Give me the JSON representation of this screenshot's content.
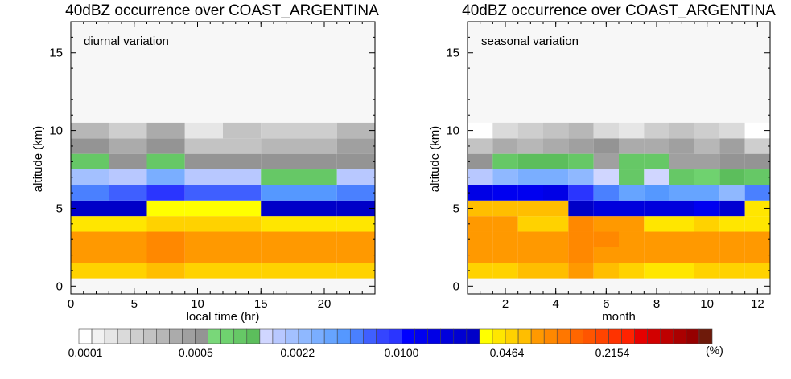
{
  "chart_data": [
    {
      "type": "heatmap",
      "title": "40dBZ occurrence over COAST_ARGENTINA",
      "annotation": "diurnal variation",
      "xlabel": "local time (hr)",
      "ylabel": "altitude (km)",
      "xlim": [
        0,
        24
      ],
      "ylim": [
        -0.5,
        17
      ],
      "xticks": [
        "0",
        "5",
        "10",
        "15",
        "20"
      ],
      "xtick_values": [
        0,
        5,
        10,
        15,
        20
      ],
      "yticks": [
        "0",
        "5",
        "10",
        "15"
      ],
      "ytick_values": [
        0,
        5,
        10,
        15
      ],
      "x_bin_edges": [
        0,
        3,
        6,
        9,
        12,
        15,
        18,
        21,
        24
      ],
      "y_bin_edges": [
        0.5,
        1.5,
        2.5,
        3.5,
        4.5,
        5.5,
        6.5,
        7.5,
        8.5,
        9.5,
        10.5
      ],
      "color_index_rows_bottom_to_top": [
        [
          33,
          33,
          34,
          33,
          33,
          33,
          33,
          33
        ],
        [
          35,
          35,
          36,
          35,
          35,
          35,
          35,
          35
        ],
        [
          35,
          35,
          36,
          35,
          35,
          35,
          35,
          35
        ],
        [
          32,
          32,
          33,
          33,
          33,
          32,
          32,
          32
        ],
        [
          30,
          30,
          31,
          31,
          31,
          30,
          30,
          30
        ],
        [
          21,
          22,
          24,
          22,
          22,
          20,
          20,
          21
        ],
        [
          16,
          15,
          18,
          15,
          15,
          12,
          12,
          15
        ],
        [
          12,
          9,
          12,
          9,
          9,
          9,
          9,
          9
        ],
        [
          9,
          7,
          9,
          5,
          5,
          6,
          6,
          8
        ],
        [
          6,
          4,
          7,
          2,
          5,
          4,
          4,
          6
        ],
        [
          4,
          1,
          3,
          0,
          0,
          0,
          0,
          2
        ]
      ]
    },
    {
      "type": "heatmap",
      "title": "40dBZ occurrence over COAST_ARGENTINA",
      "annotation": "seasonal variation",
      "xlabel": "month",
      "ylabel": "altitude (km)",
      "xlim": [
        0.5,
        12.5
      ],
      "ylim": [
        -0.5,
        17
      ],
      "xticks": [
        "2",
        "4",
        "6",
        "8",
        "10",
        "12"
      ],
      "xtick_values": [
        2,
        4,
        6,
        8,
        10,
        12
      ],
      "yticks": [
        "0",
        "5",
        "10",
        "15"
      ],
      "ytick_values": [
        0,
        5,
        10,
        15
      ],
      "x_bin_edges": [
        0.5,
        1.5,
        2.5,
        3.5,
        4.5,
        5.5,
        6.5,
        7.5,
        8.5,
        9.5,
        10.5,
        11.5,
        12.5
      ],
      "y_bin_edges": [
        0.5,
        1.5,
        2.5,
        3.5,
        4.5,
        5.5,
        6.5,
        7.5,
        8.5,
        9.5,
        10.5
      ],
      "color_index_rows_bottom_to_top": [
        [
          33,
          33,
          34,
          34,
          35,
          34,
          33,
          32,
          32,
          33,
          33,
          33
        ],
        [
          35,
          35,
          35,
          35,
          36,
          35,
          35,
          35,
          35,
          35,
          35,
          35
        ],
        [
          35,
          35,
          35,
          35,
          36,
          36,
          35,
          35,
          35,
          35,
          35,
          35
        ],
        [
          35,
          35,
          33,
          33,
          36,
          35,
          35,
          32,
          32,
          33,
          32,
          32
        ],
        [
          34,
          34,
          34,
          34,
          30,
          28,
          28,
          28,
          28,
          26,
          29,
          32
        ],
        [
          27,
          26,
          26,
          27,
          24,
          21,
          19,
          20,
          19,
          19,
          17,
          21
        ],
        [
          15,
          17,
          18,
          18,
          17,
          14,
          12,
          14,
          12,
          11,
          13,
          12
        ],
        [
          9,
          12,
          13,
          13,
          12,
          8,
          12,
          12,
          8,
          8,
          9,
          9
        ],
        [
          5,
          7,
          6,
          7,
          8,
          9,
          7,
          7,
          8,
          6,
          8,
          4
        ],
        [
          0,
          3,
          4,
          5,
          6,
          3,
          2,
          4,
          5,
          4,
          3,
          0
        ],
        [
          0,
          0,
          0,
          1,
          2,
          0,
          0,
          0,
          1,
          1,
          2,
          0
        ]
      ]
    },
    {
      "type": "colorbar",
      "unit": "(%)",
      "tick_labels": [
        "0.0001",
        "0.0005",
        "0.0022",
        "0.0100",
        "0.0464",
        "0.2154"
      ],
      "tick_values": [
        0.0001,
        0.0005,
        0.0022,
        0.01,
        0.0464,
        0.2154
      ],
      "scale": "log",
      "colors": [
        "#ffffff",
        "#f2f2f2",
        "#e6e6e6",
        "#dadada",
        "#cecece",
        "#c3c3c3",
        "#b7b7b7",
        "#ababab",
        "#a0a0a0",
        "#949494",
        "#79d779",
        "#6fd26f",
        "#66c866",
        "#5cbe5c",
        "#d0d6ff",
        "#b8c8ff",
        "#a3c0ff",
        "#8fb8ff",
        "#7aaeff",
        "#66a4ff",
        "#5598ff",
        "#4a80ff",
        "#3f5fff",
        "#3445ff",
        "#2a35ff",
        "#0000ff",
        "#0000f0",
        "#0000e6",
        "#0000dc",
        "#0000d2",
        "#0000c8",
        "#ffff00",
        "#ffe600",
        "#ffd200",
        "#ffbe00",
        "#ff9900",
        "#ff8800",
        "#ff7700",
        "#ff6600",
        "#ff5500",
        "#ff4400",
        "#ff3300",
        "#ff2200",
        "#e60000",
        "#d20000",
        "#be0000",
        "#aa0000",
        "#960000",
        "#6e1a0a"
      ]
    }
  ]
}
